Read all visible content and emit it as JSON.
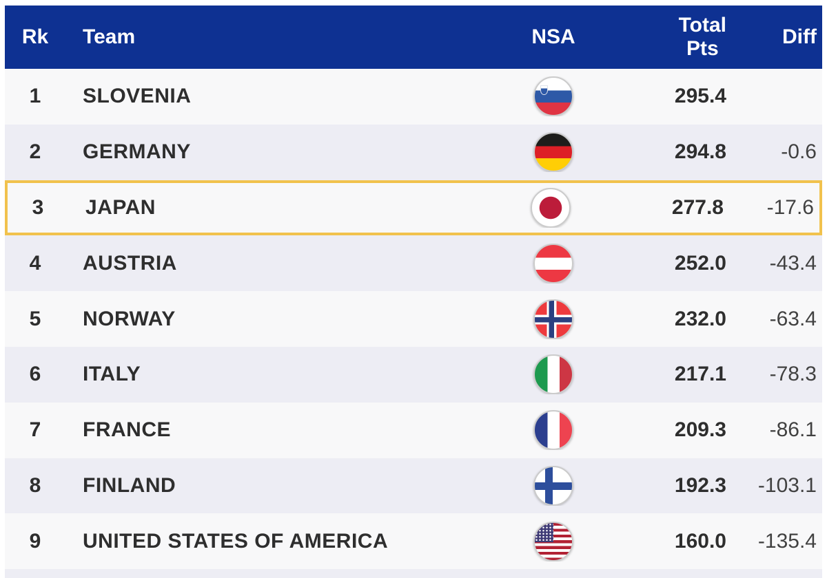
{
  "table": {
    "header": {
      "rank": "Rk",
      "team": "Team",
      "nsa": "NSA",
      "total_pts": "Total\nPts",
      "diff": "Diff"
    },
    "rows": [
      {
        "rank": "1",
        "team": "SLOVENIA",
        "flag": "slovenia-flag",
        "total": "295.4",
        "diff": "",
        "highlighted": false
      },
      {
        "rank": "2",
        "team": "GERMANY",
        "flag": "germany-flag",
        "total": "294.8",
        "diff": "-0.6",
        "highlighted": false
      },
      {
        "rank": "3",
        "team": "JAPAN",
        "flag": "japan-flag",
        "total": "277.8",
        "diff": "-17.6",
        "highlighted": true
      },
      {
        "rank": "4",
        "team": "AUSTRIA",
        "flag": "austria-flag",
        "total": "252.0",
        "diff": "-43.4",
        "highlighted": false
      },
      {
        "rank": "5",
        "team": "NORWAY",
        "flag": "norway-flag",
        "total": "232.0",
        "diff": "-63.4",
        "highlighted": false
      },
      {
        "rank": "6",
        "team": "ITALY",
        "flag": "italy-flag",
        "total": "217.1",
        "diff": "-78.3",
        "highlighted": false
      },
      {
        "rank": "7",
        "team": "FRANCE",
        "flag": "france-flag",
        "total": "209.3",
        "diff": "-86.1",
        "highlighted": false
      },
      {
        "rank": "8",
        "team": "FINLAND",
        "flag": "finland-flag",
        "total": "192.3",
        "diff": "-103.1",
        "highlighted": false
      },
      {
        "rank": "9",
        "team": "UNITED STATES OF AMERICA",
        "flag": "usa-flag",
        "total": "160.0",
        "diff": "-135.4",
        "highlighted": false
      }
    ],
    "colors": {
      "header_bg": "#0e3192",
      "header_text": "#ffffff",
      "row_odd": "#f8f8f9",
      "row_even": "#ededf4",
      "highlight_border": "#f1c24d",
      "team_text": "#2e2e2e",
      "diff_text": "#414141"
    }
  }
}
